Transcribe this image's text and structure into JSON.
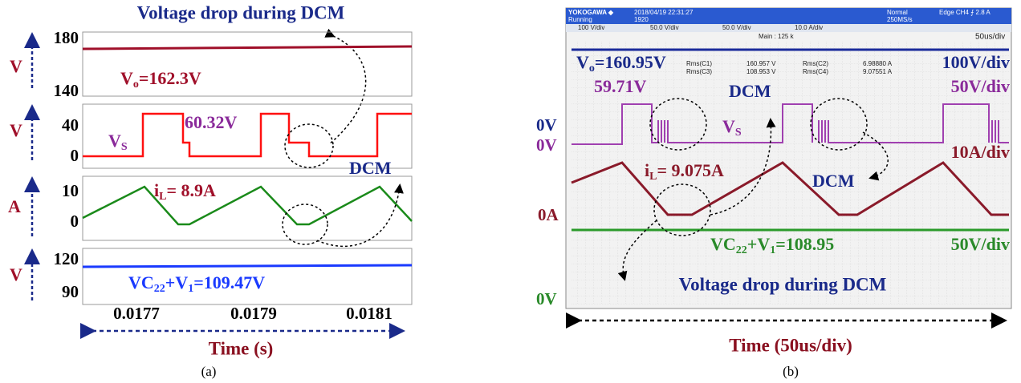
{
  "panel_a": {
    "title": "Voltage drop during DCM",
    "plots": [
      {
        "axis_label": "V",
        "ticks": [
          180,
          140
        ],
        "annotation": [
          "V",
          "o",
          "=162.3V"
        ]
      },
      {
        "axis_label": "V",
        "ticks": [
          40,
          0
        ],
        "annotation": [
          "V",
          "S"
        ],
        "value_label": "60.32V"
      },
      {
        "axis_label": "A",
        "ticks": [
          10,
          0
        ],
        "annotation": [
          "i",
          "L",
          "= 8.9A"
        ],
        "dcm_label": "DCM"
      },
      {
        "axis_label": "V",
        "ticks": [
          120,
          90
        ],
        "annotation": [
          "VC",
          "22",
          "+V",
          "1",
          "=109.47V"
        ]
      }
    ],
    "x_ticks": [
      "0.0177",
      "0.0179",
      "0.0181"
    ],
    "x_label": "Time (s)",
    "caption": "(a)"
  },
  "panel_b": {
    "header": {
      "brand": "YOKOGAWA ◆",
      "timestamp": "2018/04/19 22:31:27",
      "status": "Running",
      "count": "1920",
      "mode": "Normal",
      "rate": "250MS/s",
      "trigger": "Edge CH4 ⨍ 2.8 A",
      "channels": [
        "100 V/div",
        "50.0 V/div",
        "50.0 V/div",
        "10.0 A/div"
      ],
      "main": "Main : 125 k",
      "timebase": "50us/div"
    },
    "measurements": [
      [
        "Rms(C1)",
        "160.957 V",
        "Rms(C2)",
        "6.98880 A"
      ],
      [
        "Rms(C3)",
        "108.953 V",
        "Rms(C4)",
        "9.07551 A"
      ]
    ],
    "zero_labels": [
      "0V",
      "0V",
      "0A",
      "0V"
    ],
    "vo_label": [
      "V",
      "o",
      "=160.95V"
    ],
    "vs_value": "59.71V",
    "vs_label": [
      "V",
      "S"
    ],
    "il_label": [
      "i",
      "L",
      "= 9.075A"
    ],
    "vc_label": [
      "VC",
      "22",
      "+V",
      "1",
      "=108.95"
    ],
    "scales": [
      "100V/div",
      "50V/div",
      "10A/div",
      "50V/div"
    ],
    "dcm_labels": [
      "DCM",
      "DCM"
    ],
    "note": "Voltage drop during DCM",
    "x_label": "Time (50us/div)",
    "caption": "(b)"
  }
}
